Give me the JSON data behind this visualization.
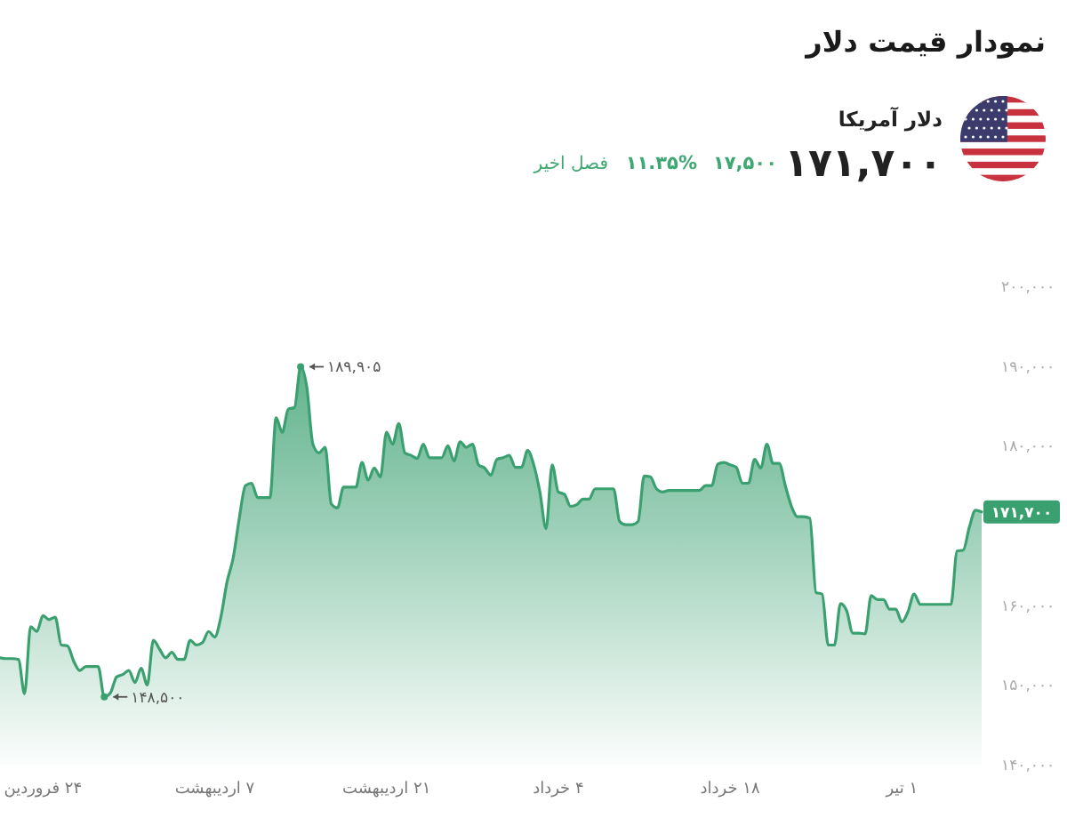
{
  "chart_data": {
    "type": "area",
    "title": "نمودار قیمت دلار",
    "subtitle": "دلار آمریکا",
    "annotations": [
      "۱۷۱,۷۰۰",
      "۱۷,۵۰۰",
      "۱۱.۳۵%",
      "فصل اخیر",
      "۱۸۹,۹۰۵",
      "۱۴۸,۵۰۰",
      "۱۷۱,۷۰۰"
    ],
    "color": "#3aa070",
    "categories": [
      null,
      null,
      null,
      null,
      null,
      null,
      null,
      "۲۴ فروردین",
      null,
      null,
      null,
      null,
      null,
      null,
      null,
      null,
      null,
      null,
      null,
      null,
      null,
      null,
      null,
      null,
      null,
      null,
      null,
      null,
      null,
      null,
      null,
      null,
      null,
      null,
      null,
      "۷ اردیبهشت",
      null,
      null,
      null,
      null,
      null,
      null,
      null,
      null,
      null,
      null,
      null,
      null,
      null,
      null,
      null,
      null,
      null,
      null,
      null,
      null,
      null,
      null,
      null,
      null,
      null,
      null,
      null,
      "۲۱ اردیبهشت",
      null,
      null,
      null,
      null,
      null,
      null,
      null,
      null,
      null,
      null,
      null,
      null,
      null,
      null,
      null,
      null,
      null,
      null,
      null,
      null,
      null,
      null,
      null,
      null,
      null,
      null,
      null,
      "۴ خرداد",
      null,
      null,
      null,
      null,
      null,
      null,
      null,
      null,
      null,
      null,
      null,
      null,
      null,
      null,
      null,
      null,
      null,
      null,
      null,
      null,
      null,
      null,
      null,
      null,
      null,
      null,
      null,
      "۱۸ خرداد",
      null,
      null,
      null,
      null,
      null,
      null,
      null,
      null,
      null,
      null,
      null,
      null,
      null,
      null,
      null,
      null,
      null,
      null,
      null,
      null,
      null,
      null,
      null,
      null,
      null,
      null,
      null,
      "۱ تیر",
      null,
      null,
      null,
      null,
      null,
      null,
      null,
      null,
      null,
      null,
      null,
      null,
      null
    ],
    "values": [
      153400,
      153300,
      153300,
      153200,
      148900,
      157300,
      156700,
      158700,
      158200,
      158500,
      155000,
      154900,
      153000,
      151800,
      152300,
      152300,
      152300,
      148500,
      149000,
      151000,
      151300,
      151800,
      150300,
      152100,
      150000,
      155600,
      154500,
      153400,
      154100,
      153200,
      153200,
      155600,
      155000,
      155300,
      156700,
      156000,
      158500,
      162900,
      165900,
      170900,
      175000,
      175300,
      173500,
      173500,
      173500,
      183500,
      181700,
      184600,
      184800,
      189905,
      187400,
      180200,
      179100,
      179800,
      172700,
      172200,
      174800,
      174800,
      174800,
      177900,
      175700,
      177200,
      176100,
      181700,
      180200,
      182800,
      179100,
      178800,
      178400,
      180200,
      178500,
      178500,
      178500,
      180000,
      178100,
      180500,
      179800,
      180200,
      177600,
      177200,
      176300,
      178300,
      178500,
      178800,
      177300,
      177300,
      179400,
      177600,
      174200,
      169600,
      177600,
      174200,
      173900,
      172400,
      172600,
      173300,
      173300,
      174600,
      174600,
      174600,
      174600,
      170500,
      170100,
      170100,
      170500,
      176200,
      176100,
      174600,
      174200,
      174400,
      174400,
      174400,
      174400,
      174400,
      174400,
      175000,
      175000,
      177700,
      177900,
      177600,
      177300,
      175300,
      175300,
      178300,
      177200,
      180200,
      177800,
      177800,
      175000,
      172400,
      171100,
      171100,
      170900,
      161600,
      161400,
      155000,
      155000,
      160200,
      159300,
      156500,
      156500,
      156400,
      161200,
      160700,
      160700,
      159500,
      159500,
      157900,
      159200,
      161400,
      160100,
      160100,
      160100,
      160100,
      160100,
      160100,
      166800,
      166900,
      169800,
      171900,
      171700
    ],
    "ylim": [
      140000,
      200000
    ],
    "yticks": [
      {
        "value": 140000,
        "label": "۱۴۰,۰۰۰"
      },
      {
        "value": 150000,
        "label": "۱۵۰,۰۰۰"
      },
      {
        "value": 160000,
        "label": "۱۶۰,۰۰۰"
      },
      {
        "value": 180000,
        "label": "۱۸۰,۰۰۰"
      },
      {
        "value": 190000,
        "label": "۱۹۰,۰۰۰"
      },
      {
        "value": 200000,
        "label": "۲۰۰,۰۰۰"
      }
    ],
    "marker": "none",
    "line_style": "solid"
  }
}
